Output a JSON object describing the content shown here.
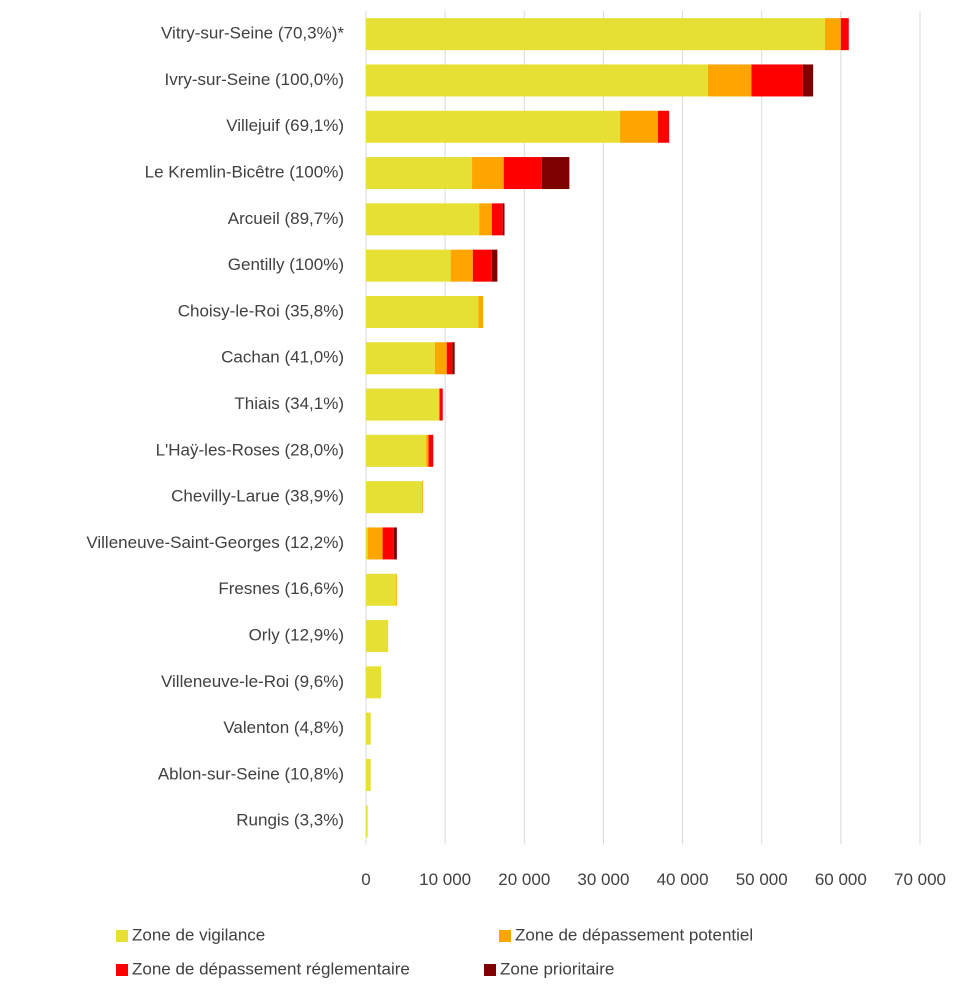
{
  "chart_data": {
    "type": "stacked-bar-horizontal",
    "categories": [
      "Vitry-sur-Seine (70,3%)*",
      "Ivry-sur-Seine  (100,0%)",
      "Villejuif (69,1%)",
      "Le Kremlin-Bicêtre (100%)",
      "Arcueil (89,7%)",
      "Gentilly (100%)",
      "Choisy-le-Roi (35,8%)",
      "Cachan (41,0%)",
      "Thiais (34,1%)",
      "L'Haÿ-les-Roses (28,0%)",
      "Chevilly-Larue (38,9%)",
      "Villeneuve-Saint-Georges (12,2%)",
      "Fresnes (16,6%)",
      "Orly (12,9%)",
      "Villeneuve-le-Roi (9,6%)",
      "Valenton (4,8%)",
      "Ablon-sur-Seine (10,8%)",
      "Rungis (3,3%)"
    ],
    "series": [
      {
        "name": "Zone de vigilance",
        "color": "#e5e033",
        "values": [
          58000,
          43200,
          32100,
          13400,
          14300,
          10700,
          14200,
          8700,
          9200,
          7600,
          7100,
          200,
          3800,
          2800,
          1900,
          600,
          600,
          200
        ]
      },
      {
        "name": "Zone de dépassement potentiel",
        "color": "#ffa500",
        "values": [
          2000,
          5500,
          4800,
          4000,
          1600,
          2800,
          600,
          1500,
          100,
          300,
          100,
          1900,
          100,
          0,
          0,
          0,
          0,
          0
        ]
      },
      {
        "name": "Zone de dépassement réglementaire",
        "color": "#ff0000",
        "values": [
          1000,
          6500,
          1400,
          4800,
          1400,
          2400,
          0,
          700,
          400,
          600,
          0,
          1400,
          0,
          0,
          0,
          0,
          0,
          0
        ]
      },
      {
        "name": "Zone prioritaire",
        "color": "#7f0000",
        "values": [
          0,
          1300,
          0,
          3500,
          200,
          700,
          0,
          300,
          0,
          0,
          0,
          400,
          0,
          0,
          0,
          0,
          0,
          0
        ]
      }
    ],
    "xlim": [
      0,
      70000
    ],
    "xticks": [
      0,
      {
        "value": 10000,
        "label": "10 000"
      },
      {
        "value": 20000,
        "label": "20 000"
      },
      {
        "value": 30000,
        "label": "30 000"
      },
      {
        "value": 40000,
        "label": "40 000"
      },
      {
        "value": 50000,
        "label": "50 000"
      },
      {
        "value": 60000,
        "label": "60 000"
      },
      {
        "value": 70000,
        "label": "70 000"
      }
    ],
    "grid": true,
    "legend": "bottom"
  }
}
